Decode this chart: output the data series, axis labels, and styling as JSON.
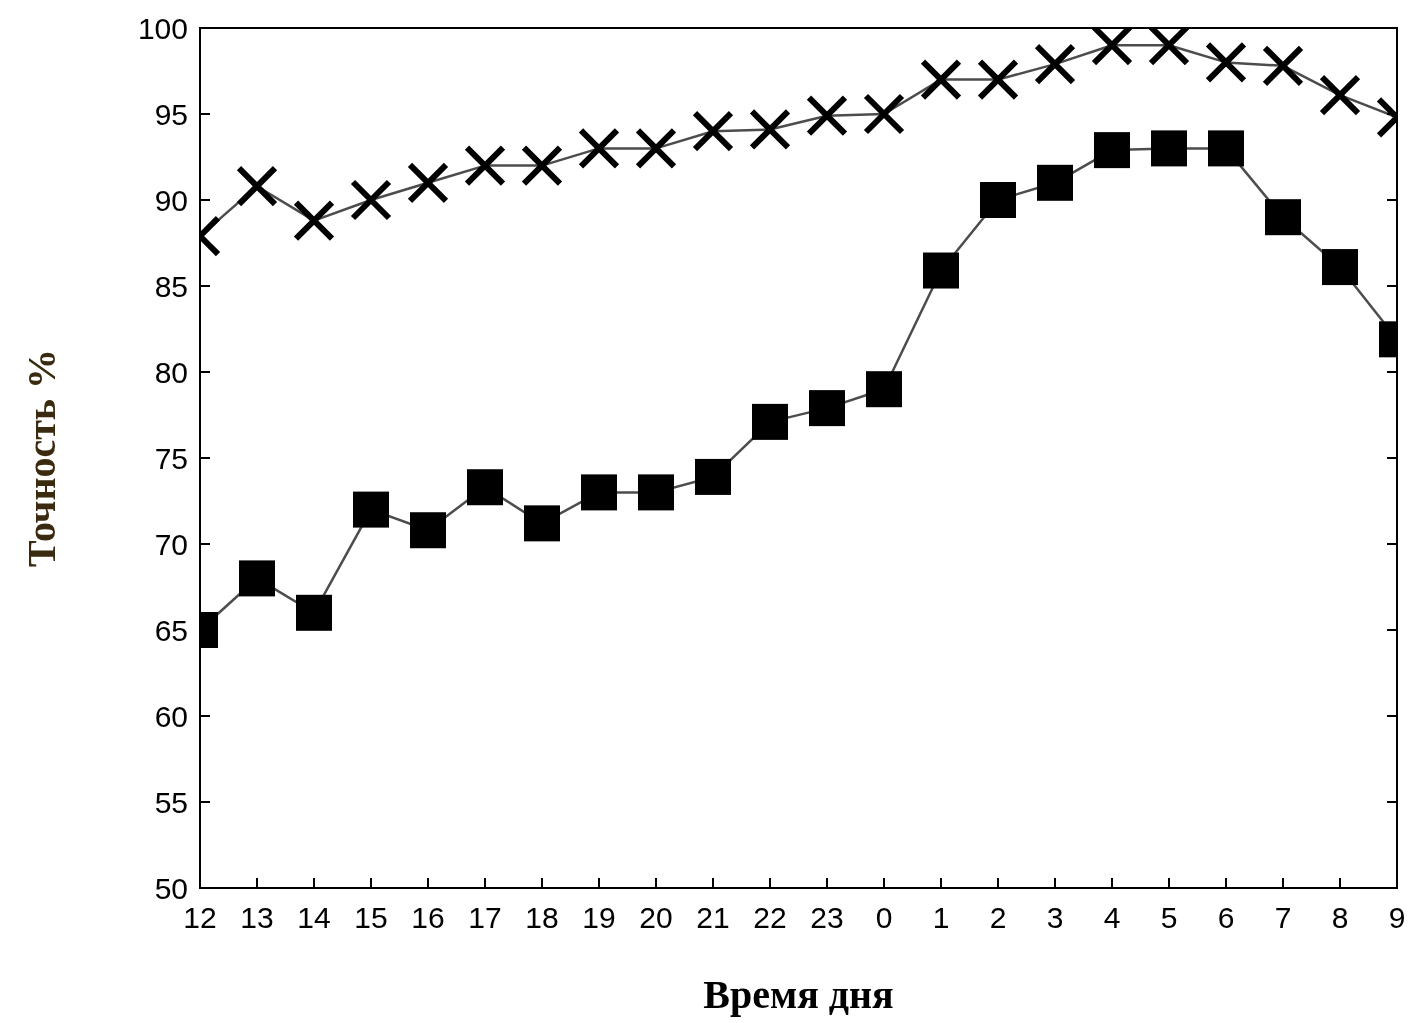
{
  "chart_data": {
    "type": "line",
    "xlabel": "Время дня",
    "ylabel": "Точность %",
    "categories": [
      "12",
      "13",
      "14",
      "15",
      "16",
      "17",
      "18",
      "19",
      "20",
      "21",
      "22",
      "23",
      "0",
      "1",
      "2",
      "3",
      "4",
      "5",
      "6",
      "7",
      "8",
      "9"
    ],
    "series": [
      {
        "color": "#000000",
        "marker": "square",
        "values": [
          65,
          68,
          66,
          72,
          70.8,
          73.3,
          71.2,
          73,
          73,
          73.9,
          77.1,
          77.9,
          79,
          85.9,
          90,
          91,
          92.9,
          93,
          93,
          89,
          86.1,
          81.9
        ]
      },
      {
        "color": "#000000",
        "marker": "cross",
        "values": [
          87.9,
          90.8,
          88.8,
          90,
          91,
          92,
          92,
          93,
          93,
          94,
          94.1,
          94.9,
          95,
          97,
          97,
          97.9,
          99,
          99,
          98,
          97.8,
          96.1,
          94.8
        ]
      }
    ],
    "ylim": [
      50,
      100
    ],
    "yticks": [
      50,
      55,
      60,
      65,
      70,
      75,
      80,
      85,
      90,
      95,
      100
    ],
    "grid": false,
    "line_style": "solid"
  }
}
